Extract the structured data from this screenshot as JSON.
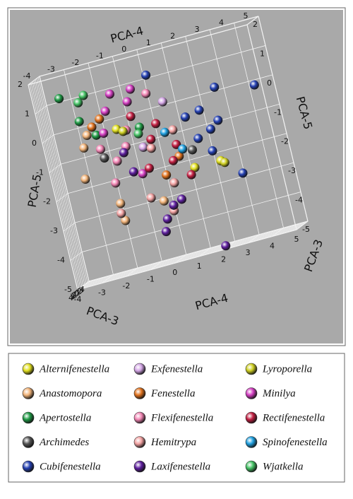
{
  "chart_data": {
    "type": "scatter3d",
    "xlabel": "PCA-4",
    "ylabel": "PCA-5",
    "zlabel": "PCA-3",
    "xlim": [
      -4,
      5
    ],
    "ylim": [
      -5,
      2
    ],
    "zlim": [
      -4,
      4
    ],
    "xticks": [
      -4,
      -3,
      -2,
      -1,
      0,
      1,
      2,
      3,
      4,
      5
    ],
    "yticks": [
      -5,
      -4,
      -3,
      -2,
      -1,
      0,
      1,
      2
    ],
    "zticks": [
      -4,
      -3,
      -2,
      -1,
      0,
      1,
      2,
      3,
      4
    ],
    "grid": true,
    "series": [
      {
        "name": "Alternifenestella",
        "color": "#e2e020",
        "x": [
          1.4,
          2.5,
          -1.3
        ],
        "y": [
          -2.2,
          -2.2,
          -0.3
        ],
        "z": [
          0,
          0.5,
          -0.5
        ]
      },
      {
        "name": "Anastomopora",
        "color": "#f2b47a",
        "x": [
          -2.7,
          -2.9,
          -1.8,
          -1.8,
          -2.4,
          -0.1
        ],
        "y": [
          -0.6,
          -1.6,
          -2.7,
          -3.3,
          -0.2,
          -3.0
        ],
        "z": [
          0,
          0.5,
          0,
          -0.5,
          1,
          0
        ]
      },
      {
        "name": "Apertostella",
        "color": "#1f9a45",
        "x": [
          -3.2,
          -2.6,
          -2.1,
          -0.3
        ],
        "y": [
          1.2,
          0.3,
          -0.3,
          -0.4
        ],
        "z": [
          0,
          0.5,
          0,
          1
        ]
      },
      {
        "name": "Archimedes",
        "color": "#555555",
        "x": [
          -2.0,
          1.5
        ],
        "y": [
          -1.1,
          -1.6
        ],
        "z": [
          0,
          0.5
        ]
      },
      {
        "name": "Cubifenestella",
        "color": "#2541b2",
        "x": [
          2.1,
          2.4,
          2.7,
          1.8,
          2.3,
          1.5,
          4.4,
          3.2,
          0.4,
          2.9
        ],
        "y": [
          -0.4,
          -1.1,
          -0.9,
          -1.3,
          -1.8,
          -0.5,
          -0.1,
          -2.8,
          1.2,
          0.2
        ],
        "z": [
          0,
          0.5,
          -0.5,
          0,
          1,
          0,
          -1,
          0,
          0.5,
          0
        ]
      },
      {
        "name": "Exfenestella",
        "color": "#d4a6e6",
        "x": [
          -0.4,
          0.8
        ],
        "y": [
          -1.1,
          0.2
        ],
        "z": [
          0,
          0.5
        ]
      },
      {
        "name": "Fenestella",
        "color": "#e0721e",
        "x": [
          -2.2,
          -1.8,
          0.9,
          0.2
        ],
        "y": [
          0.0,
          0.2,
          -1.7,
          -2.2
        ],
        "z": [
          0,
          0.5,
          0,
          -0.5
        ]
      },
      {
        "name": "Flexifenestella",
        "color": "#f286b4",
        "x": [
          -0.9,
          -1.5,
          -1.8,
          -1.0,
          0.2,
          -2.1
        ],
        "y": [
          -0.4,
          -1.3,
          -2.0,
          -0.9,
          0.6,
          -0.8
        ],
        "z": [
          0,
          0.5,
          0,
          1,
          0,
          -0.5
        ]
      },
      {
        "name": "Hemitrypa",
        "color": "#f2a2a2",
        "x": [
          -0.1,
          0.5,
          -0.6,
          0.9,
          0.2,
          -1.8
        ],
        "y": [
          -1.2,
          -2.5,
          -2.8,
          -0.8,
          -3.4,
          -3.0
        ],
        "z": [
          0,
          0.5,
          -0.5,
          0,
          0,
          1
        ]
      },
      {
        "name": "Laxifenestella",
        "color": "#5e1f9e",
        "x": [
          -0.3,
          -0.1,
          0.6,
          -1.0,
          1.8,
          0.3,
          -1.2
        ],
        "y": [
          -4.0,
          -3.6,
          -3.1,
          -1.8,
          -5.0,
          -3.2,
          -1.1
        ],
        "z": [
          0,
          0.5,
          0,
          0,
          -1,
          1,
          0
        ]
      },
      {
        "name": "Lyroporella",
        "color": "#cfd022",
        "x": [
          2.6,
          -1.0
        ],
        "y": [
          -2.3,
          -0.4
        ],
        "z": [
          0,
          0.5
        ]
      },
      {
        "name": "Minilya",
        "color": "#d43fc2",
        "x": [
          -1.2,
          -1.5,
          -0.6,
          -0.3,
          -1.8,
          -0.7
        ],
        "y": [
          0.9,
          0.4,
          0.5,
          0.9,
          -0.3,
          -1.95
        ],
        "z": [
          0,
          0.5,
          0,
          1,
          0,
          -0.5
        ]
      },
      {
        "name": "Rectifenestella",
        "color": "#c21f42",
        "x": [
          0.3,
          0.0,
          0.9,
          0.6,
          -0.3,
          1.2,
          -0.6
        ],
        "y": [
          -0.45,
          -0.9,
          -1.3,
          -1.8,
          -1.8,
          -2.4,
          0.0
        ],
        "z": [
          0,
          0.5,
          0,
          -0.5,
          1,
          0,
          0
        ]
      },
      {
        "name": "Spinofenestella",
        "color": "#1fa0e0",
        "x": [
          1.1,
          0.6
        ],
        "y": [
          -1.5,
          -0.8
        ],
        "z": [
          0,
          0.5
        ]
      },
      {
        "name": "Wjatkella",
        "color": "#45c265",
        "x": [
          -2.5,
          -2.2,
          -0.4
        ],
        "y": [
          0.9,
          1.1,
          -0.6
        ],
        "z": [
          0,
          0.5,
          1
        ]
      }
    ]
  }
}
